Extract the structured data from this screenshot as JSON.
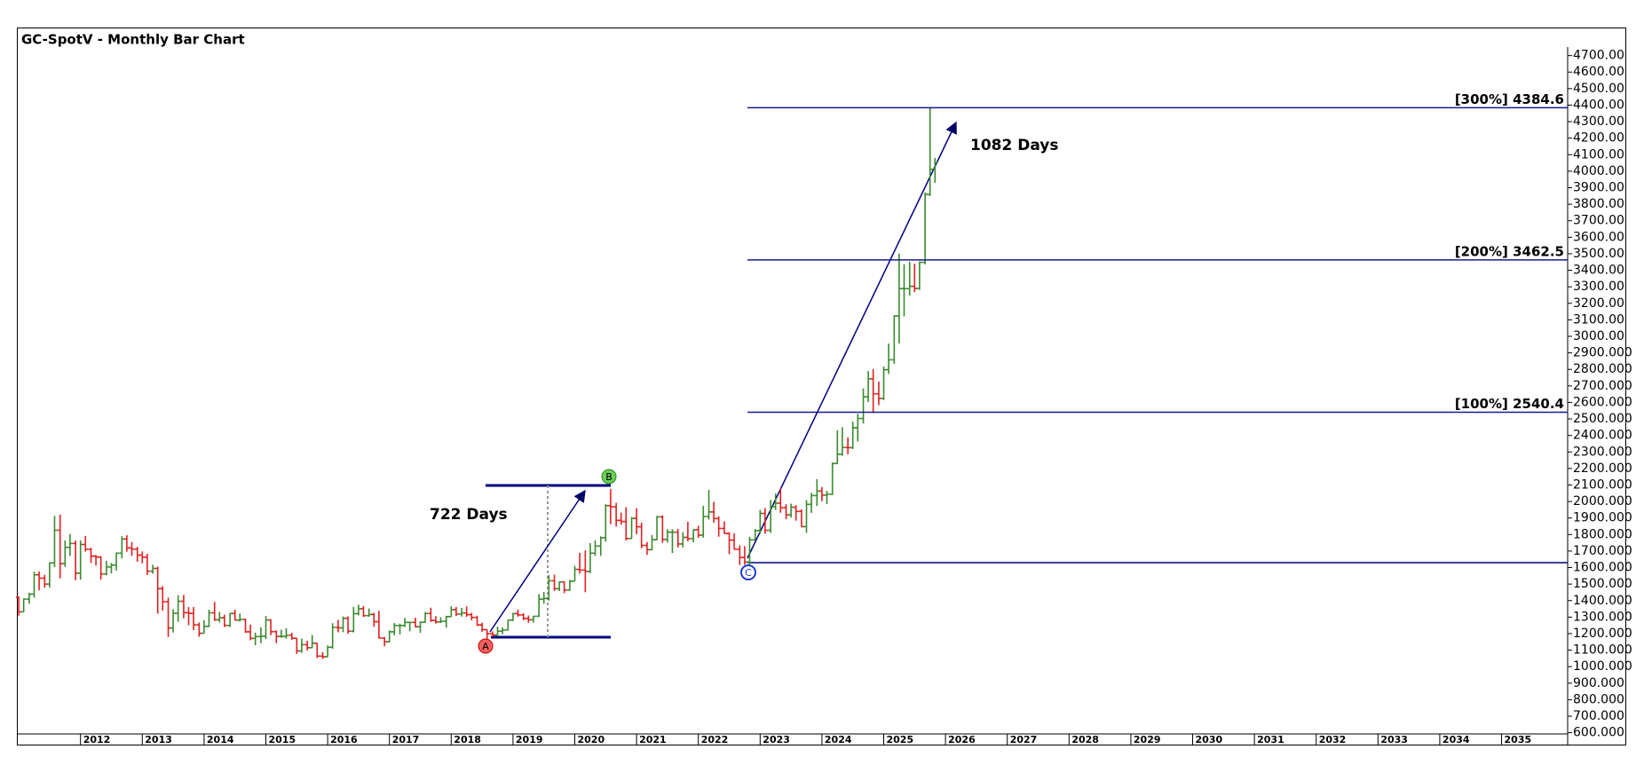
{
  "chart_data": {
    "type": "ohlc",
    "title": "GC-SpotV - Monthly Bar Chart",
    "up_color": "#3a8a2e",
    "down_color": "#e02020",
    "level_color": "#1a1a8c",
    "x": [
      2011,
      2011.08,
      2011.17,
      2011.25,
      2011.33,
      2011.42,
      2011.5,
      2011.58,
      2011.67,
      2011.75,
      2011.83,
      2011.92,
      2012,
      2012.08,
      2012.17,
      2012.25,
      2012.33,
      2012.42,
      2012.5,
      2012.58,
      2012.67,
      2012.75,
      2012.83,
      2012.92,
      2013,
      2013.08,
      2013.17,
      2013.25,
      2013.33,
      2013.42,
      2013.5,
      2013.58,
      2013.67,
      2013.75,
      2013.83,
      2013.92,
      2014,
      2014.08,
      2014.17,
      2014.25,
      2014.33,
      2014.42,
      2014.5,
      2014.58,
      2014.67,
      2014.75,
      2014.83,
      2014.92,
      2015,
      2015.08,
      2015.17,
      2015.25,
      2015.33,
      2015.42,
      2015.5,
      2015.58,
      2015.67,
      2015.75,
      2015.83,
      2015.92,
      2016,
      2016.08,
      2016.17,
      2016.25,
      2016.33,
      2016.42,
      2016.5,
      2016.58,
      2016.67,
      2016.75,
      2016.83,
      2016.92,
      2017,
      2017.08,
      2017.17,
      2017.25,
      2017.33,
      2017.42,
      2017.5,
      2017.58,
      2017.67,
      2017.75,
      2017.83,
      2017.92,
      2018,
      2018.08,
      2018.17,
      2018.25,
      2018.33,
      2018.42,
      2018.5,
      2018.58,
      2018.67,
      2018.75,
      2018.83,
      2018.92,
      2019,
      2019.08,
      2019.17,
      2019.25,
      2019.33,
      2019.42,
      2019.5,
      2019.58,
      2019.67,
      2019.75,
      2019.83,
      2019.92,
      2020,
      2020.08,
      2020.17,
      2020.25,
      2020.33,
      2020.42,
      2020.5,
      2020.58,
      2020.67,
      2020.75,
      2020.83,
      2020.92,
      2021,
      2021.08,
      2021.17,
      2021.25,
      2021.33,
      2021.42,
      2021.5,
      2021.58,
      2021.67,
      2021.75,
      2021.83,
      2021.92,
      2022,
      2022.08,
      2022.17,
      2022.25,
      2022.33,
      2022.42,
      2022.5,
      2022.58,
      2022.67,
      2022.75,
      2022.83,
      2022.92,
      2023,
      2023.08,
      2023.17,
      2023.25,
      2023.33,
      2023.42,
      2023.5,
      2023.58,
      2023.67,
      2023.75,
      2023.83,
      2023.92,
      2024,
      2024.08,
      2024.17,
      2024.25,
      2024.33,
      2024.42,
      2024.5,
      2024.58,
      2024.67,
      2024.75,
      2024.83,
      2024.92,
      2025,
      2025.08,
      2025.17,
      2025.25,
      2025.33,
      2025.42,
      2025.5,
      2025.58,
      2025.67,
      2025.75,
      2025.83
    ],
    "open": [
      1421,
      1332,
      1409,
      1439,
      1556,
      1536,
      1500,
      1628,
      1826,
      1624,
      1722,
      1746,
      1566,
      1740,
      1711,
      1669,
      1664,
      1561,
      1604,
      1615,
      1687,
      1773,
      1719,
      1712,
      1675,
      1663,
      1578,
      1595,
      1472,
      1393,
      1234,
      1323,
      1396,
      1327,
      1323,
      1253,
      1202,
      1244,
      1326,
      1284,
      1296,
      1250,
      1322,
      1282,
      1286,
      1211,
      1171,
      1182,
      1184,
      1283,
      1212,
      1183,
      1183,
      1190,
      1172,
      1095,
      1133,
      1115,
      1142,
      1064,
      1060,
      1118,
      1238,
      1235,
      1293,
      1215,
      1321,
      1351,
      1309,
      1316,
      1272,
      1173,
      1151,
      1211,
      1249,
      1249,
      1268,
      1268,
      1242,
      1269,
      1322,
      1280,
      1271,
      1275,
      1303,
      1345,
      1318,
      1325,
      1315,
      1298,
      1253,
      1224,
      1200,
      1192,
      1215,
      1222,
      1282,
      1321,
      1313,
      1292,
      1284,
      1305,
      1409,
      1413,
      1520,
      1472,
      1513,
      1464,
      1517,
      1589,
      1585,
      1577,
      1687,
      1730,
      1781,
      1975,
      1968,
      1886,
      1879,
      1776,
      1898,
      1847,
      1734,
      1708,
      1769,
      1907,
      1770,
      1814,
      1814,
      1743,
      1783,
      1775,
      1829,
      1796,
      1909,
      1937,
      1897,
      1837,
      1807,
      1766,
      1711,
      1661,
      1633,
      1768,
      1824,
      1928,
      1826,
      1969,
      1990,
      1963,
      1919,
      1965,
      1940,
      1848,
      1983,
      2036,
      2063,
      2039,
      2044,
      2230,
      2286,
      2327,
      2326,
      2447,
      2503,
      2634,
      2743,
      2652,
      2624,
      2798,
      2858,
      3124,
      3289,
      3289,
      3303,
      3290,
      3448,
      3859,
      4011
    ],
    "high": [
      1424,
      1413,
      1448,
      1575,
      1577,
      1556,
      1632,
      1913,
      1921,
      1764,
      1803,
      1764,
      1764,
      1791,
      1720,
      1676,
      1669,
      1640,
      1628,
      1691,
      1790,
      1796,
      1755,
      1726,
      1698,
      1684,
      1617,
      1606,
      1488,
      1418,
      1348,
      1433,
      1434,
      1361,
      1361,
      1267,
      1281,
      1345,
      1392,
      1331,
      1315,
      1326,
      1345,
      1322,
      1291,
      1255,
      1206,
      1238,
      1307,
      1287,
      1220,
      1224,
      1232,
      1205,
      1173,
      1170,
      1157,
      1191,
      1143,
      1088,
      1128,
      1263,
      1283,
      1304,
      1304,
      1362,
      1375,
      1367,
      1352,
      1326,
      1338,
      1180,
      1220,
      1264,
      1261,
      1295,
      1271,
      1296,
      1274,
      1331,
      1357,
      1306,
      1299,
      1308,
      1366,
      1361,
      1356,
      1365,
      1326,
      1309,
      1266,
      1225,
      1214,
      1243,
      1237,
      1284,
      1326,
      1346,
      1324,
      1310,
      1306,
      1439,
      1452,
      1555,
      1557,
      1517,
      1516,
      1525,
      1611,
      1689,
      1704,
      1748,
      1765,
      1789,
      1984,
      2075,
      1992,
      1933,
      1965,
      1906,
      1959,
      1872,
      1755,
      1797,
      1913,
      1916,
      1832,
      1832,
      1834,
      1814,
      1877,
      1831,
      1853,
      1974,
      2070,
      1998,
      1910,
      1879,
      1814,
      1807,
      1735,
      1730,
      1786,
      1833,
      1949,
      1960,
      2009,
      2048,
      2079,
      1983,
      1987,
      1978,
      1953,
      2009,
      2052,
      2135,
      2088,
      2065,
      2236,
      2431,
      2450,
      2387,
      2484,
      2531,
      2685,
      2790,
      2801,
      2726,
      2817,
      2956,
      3128,
      3500,
      3436,
      3452,
      3439,
      3453,
      3871,
      4381,
      4080
    ],
    "low": [
      1309,
      1329,
      1381,
      1418,
      1462,
      1478,
      1480,
      1603,
      1535,
      1604,
      1671,
      1523,
      1527,
      1696,
      1627,
      1612,
      1527,
      1553,
      1565,
      1582,
      1656,
      1696,
      1671,
      1635,
      1626,
      1555,
      1563,
      1321,
      1339,
      1180,
      1207,
      1271,
      1293,
      1251,
      1221,
      1181,
      1202,
      1240,
      1277,
      1268,
      1240,
      1240,
      1280,
      1273,
      1205,
      1160,
      1130,
      1142,
      1167,
      1191,
      1142,
      1175,
      1170,
      1162,
      1077,
      1084,
      1098,
      1112,
      1052,
      1046,
      1058,
      1108,
      1208,
      1209,
      1199,
      1207,
      1310,
      1301,
      1302,
      1241,
      1171,
      1123,
      1146,
      1190,
      1195,
      1240,
      1214,
      1237,
      1205,
      1266,
      1271,
      1261,
      1264,
      1236,
      1302,
      1307,
      1303,
      1302,
      1281,
      1246,
      1211,
      1160,
      1180,
      1183,
      1196,
      1221,
      1276,
      1303,
      1281,
      1266,
      1267,
      1301,
      1381,
      1400,
      1459,
      1458,
      1445,
      1459,
      1517,
      1563,
      1451,
      1567,
      1671,
      1671,
      1757,
      1863,
      1849,
      1860,
      1764,
      1775,
      1802,
      1717,
      1677,
      1704,
      1766,
      1750,
      1751,
      1688,
      1722,
      1722,
      1759,
      1753,
      1780,
      1781,
      1890,
      1872,
      1787,
      1805,
      1681,
      1711,
      1615,
      1617,
      1616,
      1765,
      1804,
      1805,
      1810,
      1949,
      1932,
      1893,
      1903,
      1884,
      1846,
      1810,
      1931,
      1973,
      2001,
      1984,
      2039,
      2228,
      2277,
      2286,
      2318,
      2364,
      2472,
      2603,
      2536,
      2583,
      2614,
      2772,
      2833,
      2957,
      3121,
      3247,
      3268,
      3281,
      3436,
      3850,
      3930
    ],
    "close": [
      1332,
      1409,
      1439,
      1556,
      1536,
      1500,
      1628,
      1826,
      1624,
      1722,
      1746,
      1566,
      1740,
      1711,
      1669,
      1664,
      1561,
      1604,
      1615,
      1687,
      1773,
      1719,
      1712,
      1675,
      1663,
      1578,
      1595,
      1472,
      1393,
      1234,
      1323,
      1396,
      1327,
      1323,
      1253,
      1202,
      1244,
      1326,
      1284,
      1296,
      1250,
      1322,
      1282,
      1286,
      1211,
      1171,
      1182,
      1184,
      1283,
      1212,
      1183,
      1183,
      1190,
      1172,
      1095,
      1133,
      1115,
      1142,
      1064,
      1060,
      1118,
      1238,
      1235,
      1293,
      1215,
      1321,
      1351,
      1309,
      1316,
      1272,
      1173,
      1151,
      1211,
      1249,
      1249,
      1268,
      1268,
      1242,
      1269,
      1322,
      1280,
      1271,
      1275,
      1303,
      1345,
      1318,
      1325,
      1315,
      1298,
      1253,
      1224,
      1200,
      1192,
      1215,
      1222,
      1282,
      1321,
      1313,
      1292,
      1284,
      1305,
      1409,
      1413,
      1520,
      1472,
      1513,
      1464,
      1517,
      1589,
      1585,
      1577,
      1687,
      1730,
      1781,
      1975,
      1968,
      1886,
      1879,
      1776,
      1898,
      1847,
      1734,
      1708,
      1769,
      1907,
      1770,
      1814,
      1814,
      1743,
      1783,
      1775,
      1829,
      1796,
      1909,
      1937,
      1897,
      1837,
      1807,
      1766,
      1711,
      1661,
      1633,
      1768,
      1824,
      1928,
      1826,
      1969,
      1990,
      1963,
      1919,
      1965,
      1940,
      1848,
      1983,
      2036,
      2063,
      2039,
      2044,
      2230,
      2286,
      2327,
      2326,
      2447,
      2503,
      2634,
      2743,
      2652,
      2624,
      2798,
      2858,
      3124,
      3289,
      3289,
      3303,
      3290,
      3448,
      3859,
      4011,
      4050
    ],
    "xlim": [
      2010.97,
      2036.07
    ],
    "xticks": [
      2012,
      2013,
      2014,
      2015,
      2016,
      2017,
      2018,
      2019,
      2020,
      2021,
      2022,
      2023,
      2024,
      2025,
      2026,
      2027,
      2028,
      2029,
      2030,
      2031,
      2032,
      2033,
      2034,
      2035
    ],
    "ylim": [
      598,
      4870
    ],
    "yticks": [
      {
        "value": 600,
        "label": "600.000"
      },
      {
        "value": 700,
        "label": "700.000"
      },
      {
        "value": 800,
        "label": "800.000"
      },
      {
        "value": 900,
        "label": "900.000"
      },
      {
        "value": 1000,
        "label": "1000.000"
      },
      {
        "value": 1100,
        "label": "1100.000"
      },
      {
        "value": 1200,
        "label": "1200.000"
      },
      {
        "value": 1300,
        "label": "1300.000"
      },
      {
        "value": 1400,
        "label": "1400.000"
      },
      {
        "value": 1500,
        "label": "1500.000"
      },
      {
        "value": 1600,
        "label": "1600.000"
      },
      {
        "value": 1700,
        "label": "1700.000"
      },
      {
        "value": 1800,
        "label": "1800.000"
      },
      {
        "value": 1900,
        "label": "1900.000"
      },
      {
        "value": 2000,
        "label": "2000.000"
      },
      {
        "value": 2100,
        "label": "2100.000"
      },
      {
        "value": 2200,
        "label": "2200.000"
      },
      {
        "value": 2300,
        "label": "2300.000"
      },
      {
        "value": 2400,
        "label": "2400.000"
      },
      {
        "value": 2500,
        "label": "2500.000"
      },
      {
        "value": 2600,
        "label": "2600.000"
      },
      {
        "value": 2700,
        "label": "2700.000"
      },
      {
        "value": 2800,
        "label": "2800.000"
      },
      {
        "value": 2900,
        "label": "2900.000"
      },
      {
        "value": 3000,
        "label": "3000.00"
      },
      {
        "value": 3100,
        "label": "3100.00"
      },
      {
        "value": 3200,
        "label": "3200.00"
      },
      {
        "value": 3300,
        "label": "3300.00"
      },
      {
        "value": 3400,
        "label": "3400.00"
      },
      {
        "value": 3500,
        "label": "3500.00"
      },
      {
        "value": 3600,
        "label": "3600.00"
      },
      {
        "value": 3700,
        "label": "3700.00"
      },
      {
        "value": 3800,
        "label": "3800.00"
      },
      {
        "value": 3900,
        "label": "3900.00"
      },
      {
        "value": 4000,
        "label": "4000.00"
      },
      {
        "value": 4100,
        "label": "4100.00"
      },
      {
        "value": 4200,
        "label": "4200.00"
      },
      {
        "value": 4300,
        "label": "4300.00"
      },
      {
        "value": 4400,
        "label": "4400.00"
      },
      {
        "value": 4500,
        "label": "4500.00"
      },
      {
        "value": 4600,
        "label": "4600.00"
      },
      {
        "value": 4700,
        "label": "4700.00"
      }
    ],
    "levels": [
      {
        "value": 2540.4,
        "label": "[100%] 2540.4"
      },
      {
        "value": 3462.5,
        "label": "[200%] 3462.5"
      },
      {
        "value": 4384.6,
        "label": "[300%] 4384.6"
      }
    ],
    "annotations": [
      "722 Days",
      "1082 Days"
    ],
    "points": [
      "A",
      "B",
      "C"
    ]
  }
}
